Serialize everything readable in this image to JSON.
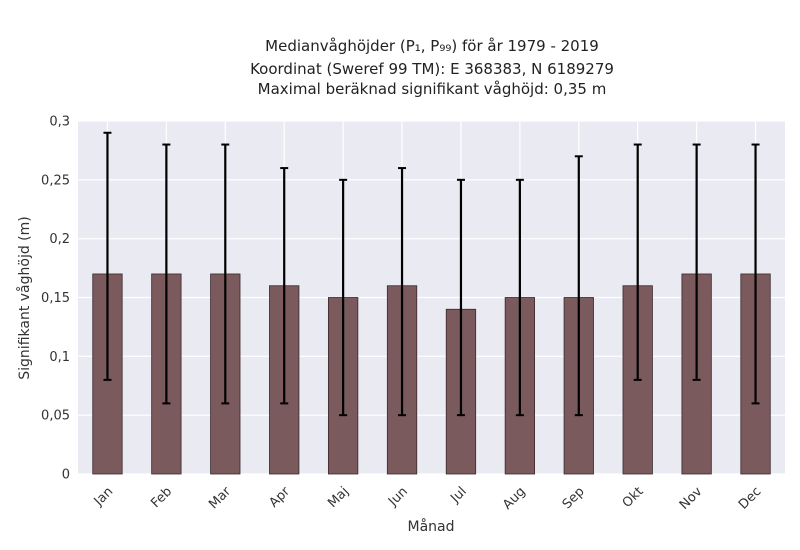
{
  "chart_data": {
    "type": "bar",
    "title_lines": [
      "Medianvåghöjder (P₁, P₉₉) för år 1979 - 2019",
      "Koordinat (Sweref 99 TM): E 368383, N 6189279",
      "Maximal beräknad signifikant våghöjd: 0,35 m"
    ],
    "xlabel": "Månad",
    "ylabel": "Signifikant våghöjd (m)",
    "categories": [
      "Jan",
      "Feb",
      "Mar",
      "Apr",
      "Maj",
      "Jun",
      "Jul",
      "Aug",
      "Sep",
      "Okt",
      "Nov",
      "Dec"
    ],
    "values": [
      0.17,
      0.17,
      0.17,
      0.16,
      0.15,
      0.16,
      0.14,
      0.15,
      0.15,
      0.16,
      0.17,
      0.17
    ],
    "p1": [
      0.08,
      0.06,
      0.06,
      0.06,
      0.05,
      0.05,
      0.05,
      0.05,
      0.05,
      0.08,
      0.08,
      0.06
    ],
    "p99": [
      0.29,
      0.28,
      0.28,
      0.26,
      0.25,
      0.26,
      0.25,
      0.25,
      0.27,
      0.28,
      0.28,
      0.28
    ],
    "ylim": [
      0,
      0.3
    ],
    "yticks": [
      0,
      0.05,
      0.1,
      0.15,
      0.2,
      0.25,
      0.3
    ],
    "ytick_labels": [
      "0",
      "0,05",
      "0,1",
      "0,15",
      "0,2",
      "0,25",
      "0,3"
    ],
    "grid": true,
    "colors": {
      "bar": "#7a5a5c",
      "bar_edge": "#3a2a2a",
      "errorbar": "#000000",
      "plot_bg": "#eaeaf2",
      "grid": "#ffffff"
    }
  }
}
